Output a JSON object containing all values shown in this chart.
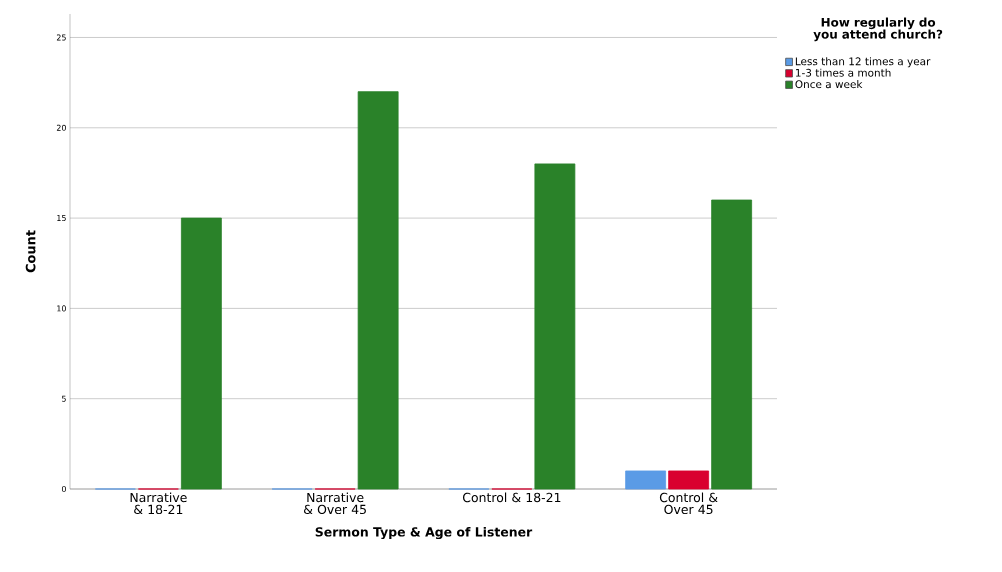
{
  "chart_data": {
    "type": "bar",
    "xlabel": "Sermon Type & Age of Listener",
    "ylabel": "Count",
    "legend_title": "How regularly do you attend church?",
    "categories": [
      "Narrative & 18-21",
      "Narrative & Over 45",
      "Control & 18-21",
      "Control & Over 45"
    ],
    "series": [
      {
        "name": "Less than 12 times a year",
        "color": "#5a9be6",
        "values": [
          0,
          0,
          0,
          1
        ]
      },
      {
        "name": "1-3 times a month",
        "color": "#d9002f",
        "values": [
          0,
          0,
          0,
          1
        ]
      },
      {
        "name": "Once a week",
        "color": "#2a8229",
        "values": [
          15,
          22,
          18,
          16
        ]
      }
    ],
    "ylim": [
      0,
      26.3
    ],
    "yticks": [
      0,
      5,
      10,
      15,
      20,
      25
    ],
    "grid": "y",
    "legend": "top right"
  }
}
